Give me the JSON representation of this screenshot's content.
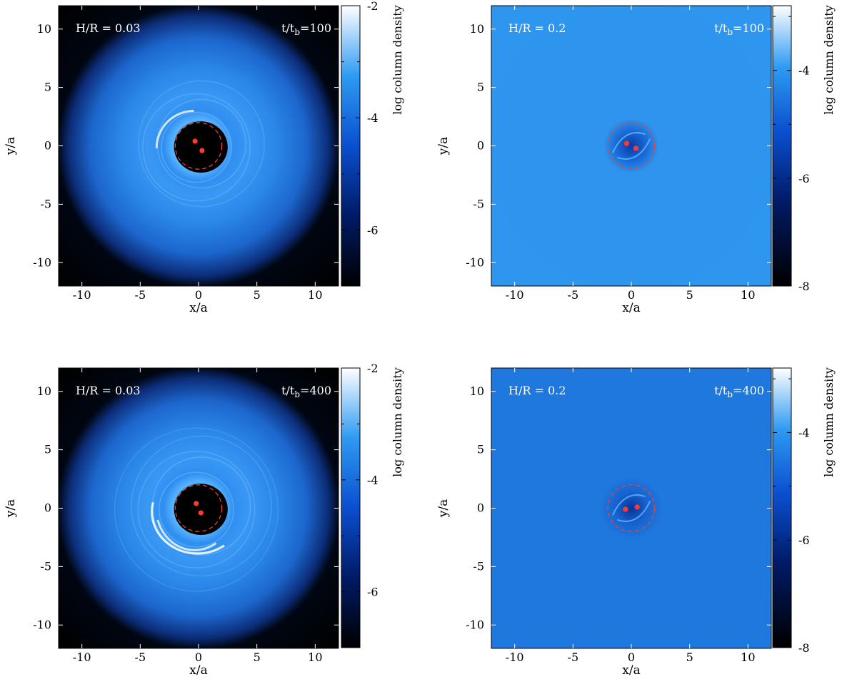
{
  "panels": [
    {
      "id": "p1",
      "hr_label": "H/R = 0.03",
      "time_label_prefix": "t/t",
      "time_label_sub": "b",
      "time_label_value": "=100",
      "xlabel": "x/a",
      "ylabel": "y/a",
      "x_ticks": [
        "-10",
        "-5",
        "0",
        "5",
        "10"
      ],
      "y_ticks": [
        "10",
        "5",
        "0",
        "-5",
        "-10"
      ],
      "colorbar_label": "log column density",
      "colorbar_ticks": [
        "-2",
        "-4",
        "-6"
      ],
      "binary": [
        {
          "x": -0.3,
          "y": 0.4
        },
        {
          "x": 0.3,
          "y": -0.4
        }
      ],
      "cavity_radius": 2.0,
      "style": "thin"
    },
    {
      "id": "p2",
      "hr_label": "H/R = 0.2",
      "time_label_prefix": "t/t",
      "time_label_sub": "b",
      "time_label_value": "=100",
      "xlabel": "x/a",
      "ylabel": "y/a",
      "x_ticks": [
        "-10",
        "-5",
        "0",
        "5",
        "10"
      ],
      "y_ticks": [
        "10",
        "5",
        "0",
        "-5",
        "-10"
      ],
      "colorbar_label": "log column density",
      "colorbar_ticks": [
        "-4",
        "-6",
        "-8"
      ],
      "binary": [
        {
          "x": -0.4,
          "y": 0.2
        },
        {
          "x": 0.4,
          "y": -0.2
        }
      ],
      "cavity_radius": 2.0,
      "style": "thick"
    },
    {
      "id": "p3",
      "hr_label": "H/R = 0.03",
      "time_label_prefix": "t/t",
      "time_label_sub": "b",
      "time_label_value": "=400",
      "xlabel": "x/a",
      "ylabel": "y/a",
      "x_ticks": [
        "-10",
        "-5",
        "0",
        "5",
        "10"
      ],
      "y_ticks": [
        "10",
        "5",
        "0",
        "-5",
        "-10"
      ],
      "colorbar_label": "log column density",
      "colorbar_ticks": [
        "-2",
        "-4",
        "-6"
      ],
      "binary": [
        {
          "x": -0.2,
          "y": 0.4
        },
        {
          "x": 0.2,
          "y": -0.4
        }
      ],
      "cavity_radius": 2.0,
      "style": "thin"
    },
    {
      "id": "p4",
      "hr_label": "H/R = 0.2",
      "time_label_prefix": "t/t",
      "time_label_sub": "b",
      "time_label_value": "=400",
      "xlabel": "x/a",
      "ylabel": "y/a",
      "x_ticks": [
        "-10",
        "-5",
        "0",
        "5",
        "10"
      ],
      "y_ticks": [
        "10",
        "5",
        "0",
        "-5",
        "-10"
      ],
      "colorbar_label": "log column density",
      "colorbar_ticks": [
        "-4",
        "-6",
        "-8"
      ],
      "binary": [
        {
          "x": -0.5,
          "y": -0.1
        },
        {
          "x": 0.5,
          "y": 0.1
        }
      ],
      "cavity_radius": 2.0,
      "style": "thick"
    }
  ],
  "colors": {
    "cavity_circle": "#e8442f",
    "binary_star": "#ff3b30",
    "thin_bg_edge": "#000814",
    "thin_disc": "#2a8cf0",
    "thick_bg": "#2d95ee",
    "thick_bg_late": "#1f78de"
  }
}
